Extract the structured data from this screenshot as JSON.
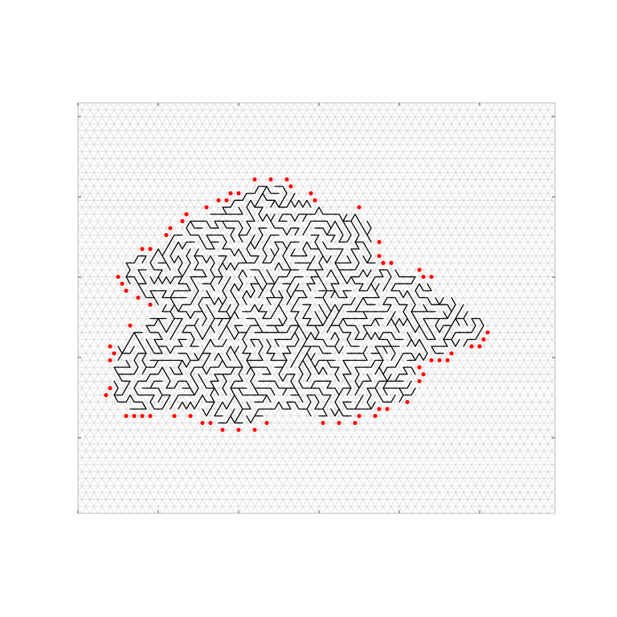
{
  "figure": {
    "type": "lattice-walk-diagram",
    "lattice": "triangular",
    "background_color": "#ffffff",
    "frame_color": "#c8c8c8",
    "grid_color": "#d9d9d9",
    "tick_color": "#555555",
    "path_color": "#000000",
    "endpoint_color": "#ff0000",
    "x_ticks": 5,
    "y_ticks": 5,
    "tick_labels_visible": false,
    "title": "",
    "xlabel": "",
    "ylabel": ""
  }
}
